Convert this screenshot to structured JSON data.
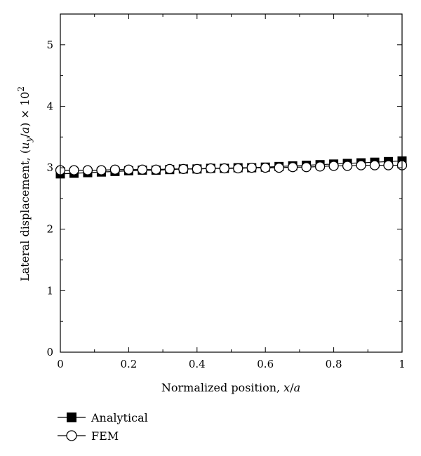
{
  "chart_data": {
    "type": "scatter",
    "title": "",
    "xlabel": "Normalized position, x/a",
    "ylabel": "Lateral displacement, (u_y/a) × 10^2",
    "xlim": [
      0,
      1
    ],
    "ylim": [
      0,
      5.5
    ],
    "xticks": [
      0,
      0.2,
      0.4,
      0.6,
      0.8,
      1
    ],
    "xtick_labels": [
      "0",
      "0.2",
      "0.4",
      "0.6",
      "0.8",
      "1"
    ],
    "yticks": [
      0,
      1,
      2,
      3,
      4,
      5
    ],
    "ytick_labels": [
      "0",
      "1",
      "2",
      "3",
      "4",
      "5"
    ],
    "grid": false,
    "legend_position": "below-left",
    "series": [
      {
        "name": "Analytical",
        "marker": "filled-square",
        "color": "#000000",
        "x": [
          0,
          0.04,
          0.08,
          0.12,
          0.16,
          0.2,
          0.24,
          0.28,
          0.32,
          0.36,
          0.4,
          0.44,
          0.48,
          0.52,
          0.56,
          0.6,
          0.64,
          0.68,
          0.72,
          0.76,
          0.8,
          0.84,
          0.88,
          0.92,
          0.96,
          1.0
        ],
        "y": [
          2.9,
          2.91,
          2.92,
          2.93,
          2.94,
          2.95,
          2.96,
          2.96,
          2.97,
          2.98,
          2.98,
          2.99,
          2.99,
          3.0,
          3.0,
          3.01,
          3.02,
          3.03,
          3.04,
          3.05,
          3.06,
          3.07,
          3.08,
          3.09,
          3.1,
          3.11
        ]
      },
      {
        "name": "FEM",
        "marker": "open-circle",
        "color": "#000000",
        "x": [
          0,
          0.04,
          0.08,
          0.12,
          0.16,
          0.2,
          0.24,
          0.28,
          0.32,
          0.36,
          0.4,
          0.44,
          0.48,
          0.52,
          0.56,
          0.6,
          0.64,
          0.68,
          0.72,
          0.76,
          0.8,
          0.84,
          0.88,
          0.92,
          0.96,
          1.0
        ],
        "y": [
          2.96,
          2.96,
          2.96,
          2.96,
          2.97,
          2.97,
          2.97,
          2.97,
          2.98,
          2.98,
          2.98,
          2.99,
          2.99,
          2.99,
          3.0,
          3.0,
          3.0,
          3.01,
          3.01,
          3.02,
          3.03,
          3.03,
          3.04,
          3.04,
          3.04,
          3.04
        ]
      }
    ]
  }
}
